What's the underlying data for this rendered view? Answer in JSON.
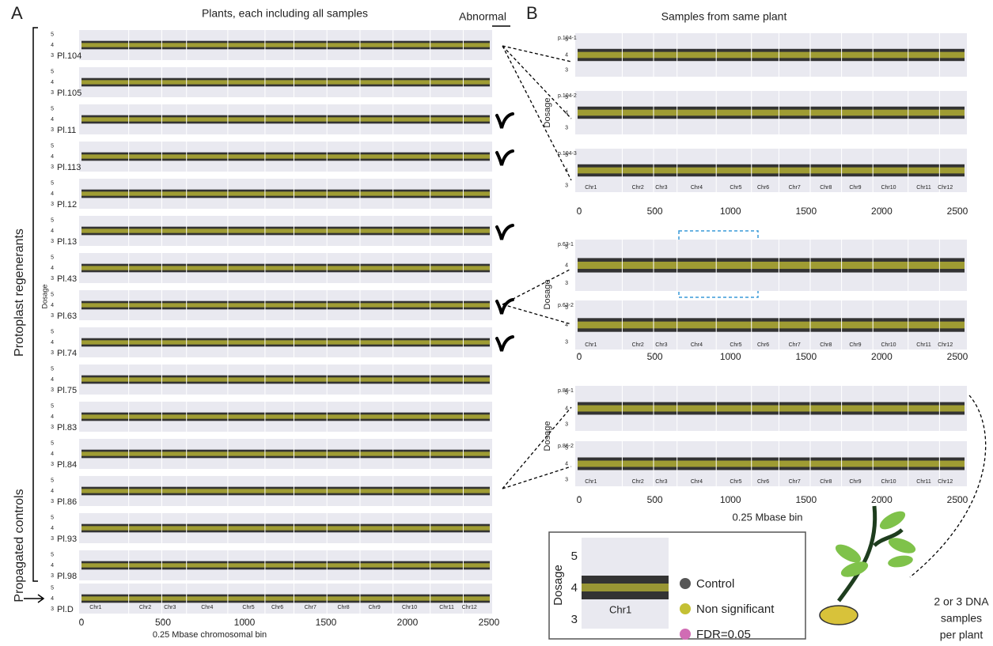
{
  "panel_a": {
    "letter": "A",
    "title": "Plants, each including all samples",
    "abnormal_header": "Abnormal",
    "group_labels": [
      "Protoplast regenerants",
      "Propagated controls"
    ],
    "y_axis_label": "Dosage",
    "yticks": [
      5,
      4,
      3
    ],
    "plants": [
      {
        "label": "Pl.104",
        "abnormal": false
      },
      {
        "label": "Pl.105",
        "abnormal": false
      },
      {
        "label": "Pl.11",
        "abnormal": true
      },
      {
        "label": "Pl.113",
        "abnormal": true
      },
      {
        "label": "Pl.12",
        "abnormal": false
      },
      {
        "label": "Pl.13",
        "abnormal": true
      },
      {
        "label": "Pl.43",
        "abnormal": false
      },
      {
        "label": "Pl.63",
        "abnormal": true
      },
      {
        "label": "Pl.74",
        "abnormal": true
      },
      {
        "label": "Pl.75",
        "abnormal": false
      },
      {
        "label": "Pl.83",
        "abnormal": false
      },
      {
        "label": "Pl.84",
        "abnormal": false
      },
      {
        "label": "Pl.86",
        "abnormal": false
      },
      {
        "label": "Pl.93",
        "abnormal": false
      },
      {
        "label": "Pl.98",
        "abnormal": false
      },
      {
        "label": "Pl.D",
        "abnormal": false
      }
    ],
    "chromosomes": [
      "Chr1",
      "Chr2",
      "Chr3",
      "Chr4",
      "Chr5",
      "Chr6",
      "Chr7",
      "Chr8",
      "Chr9",
      "Chr10",
      "Chr11",
      "Chr12"
    ],
    "xlim": [
      0,
      2500
    ],
    "xticks": [
      0,
      500,
      1000,
      1500,
      2000,
      2500
    ],
    "x_axis_label": "0.25 Mbase chromosomal bin"
  },
  "panel_b": {
    "letter": "B",
    "title": "Samples from same plant",
    "y_axis_label": "Dosage",
    "yticks": [
      5,
      4,
      3
    ],
    "groups": [
      [
        "p.104-1",
        "p.104-2",
        "p.104-3"
      ],
      [
        "p.63-1",
        "p.63-2"
      ],
      [
        "p.86-1",
        "p.86-2"
      ]
    ],
    "chromosomes": [
      "Chr1",
      "Chr2",
      "Chr3",
      "Chr4",
      "Chr5",
      "Chr6",
      "Chr7",
      "Chr8",
      "Chr9",
      "Chr10",
      "Chr11",
      "Chr12"
    ],
    "xlim": [
      0,
      2500
    ],
    "xticks": [
      0,
      500,
      1000,
      1500,
      2000,
      2500
    ],
    "x_axis_label": "0.25 Mbase bin"
  },
  "legend": {
    "y_axis_label": "Dosage",
    "yticks": [
      5,
      4,
      3
    ],
    "chromosome": "Chr1",
    "items": [
      {
        "name": "Control",
        "color": "#555555"
      },
      {
        "name": "Non significant",
        "color": "#c4c034"
      },
      {
        "name": "FDR=0.05",
        "color": "#d06cb4"
      }
    ]
  },
  "plant_caption": [
    "2 or 3 DNA",
    "samples",
    "per plant"
  ]
}
